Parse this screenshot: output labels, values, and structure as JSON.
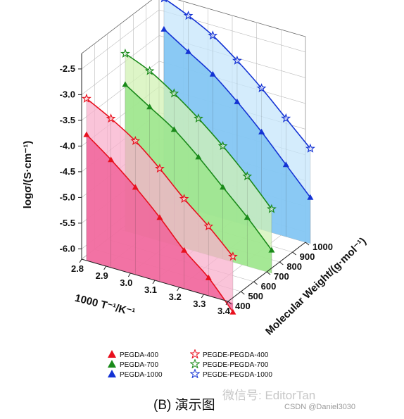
{
  "chart_data": {
    "type": "line",
    "projection": "3d",
    "xlabel": "1000 T⁻¹/K⁻¹",
    "ylabel": "Molecular Weight/(g·mol⁻¹)",
    "zlabel": "logσ/(S·cm⁻¹)",
    "x_ticks": [
      "2.8",
      "2.9",
      "3.0",
      "3.1",
      "3.2",
      "3.3",
      "3.4"
    ],
    "y_ticks": [
      "400",
      "500",
      "600",
      "700",
      "800",
      "900",
      "1000"
    ],
    "z_ticks": [
      "-2.5",
      "-3.0",
      "-3.5",
      "-4.0",
      "-4.5",
      "-5.0",
      "-5.5",
      "-6.0"
    ],
    "xlim": [
      2.8,
      3.4
    ],
    "ylim": [
      400,
      1000
    ],
    "zlim": [
      -6.2,
      -2.2
    ],
    "x": [
      2.82,
      2.92,
      3.02,
      3.12,
      3.22,
      3.32,
      3.42
    ],
    "series": [
      {
        "name": "PEGDA-400",
        "mw": 400,
        "marker": "triangle",
        "color": "#e8101e",
        "fill": "#f0649a",
        "values": [
          -3.75,
          -4.1,
          -4.5,
          -4.95,
          -5.45,
          -5.85,
          -6.38
        ]
      },
      {
        "name": "PEGDA-700",
        "mw": 700,
        "marker": "triangle",
        "color": "#1a8a1a",
        "fill": "#9be58c",
        "values": [
          -3.35,
          -3.65,
          -3.95,
          -4.35,
          -4.8,
          -5.25,
          -5.75
        ]
      },
      {
        "name": "PEGDA-1000",
        "mw": 1000,
        "marker": "triangle",
        "color": "#1433d4",
        "fill": "#7cc3f2",
        "values": [
          -2.85,
          -3.15,
          -3.45,
          -3.85,
          -4.3,
          -4.8,
          -5.3
        ]
      },
      {
        "name": "PEGDE-PEGDA-400",
        "mw": 400,
        "marker": "star",
        "color": "#e8101e",
        "fill": "#f8b0cc",
        "values": [
          -3.05,
          -3.3,
          -3.6,
          -4.0,
          -4.45,
          -4.85,
          -5.3
        ]
      },
      {
        "name": "PEGDE-PEGDA-700",
        "mw": 700,
        "marker": "star",
        "color": "#1a8a1a",
        "fill": "#d2f2b4",
        "values": [
          -2.75,
          -2.95,
          -3.25,
          -3.6,
          -4.0,
          -4.45,
          -4.95
        ]
      },
      {
        "name": "PEGDE-PEGDA-1000",
        "mw": 1000,
        "marker": "star",
        "color": "#1433d4",
        "fill": "#c5e6fb",
        "values": [
          -2.25,
          -2.45,
          -2.7,
          -3.05,
          -3.45,
          -3.9,
          -4.35
        ]
      }
    ],
    "legend_placement": "bottom",
    "grid": true
  },
  "caption": "(B) 演示图",
  "watermark": "微信号: EditorTan",
  "watermark_sub": "CSDN @Daniel3030"
}
